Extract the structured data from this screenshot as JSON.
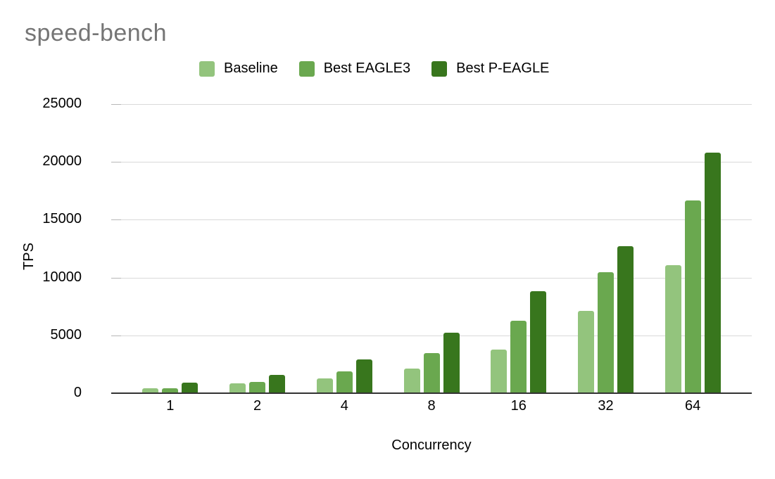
{
  "title": "speed-bench",
  "axes": {
    "xlabel": "Concurrency",
    "ylabel": "TPS"
  },
  "legend": {
    "items": [
      {
        "label": "Baseline",
        "color": "#93c47d"
      },
      {
        "label": "Best EAGLE3",
        "color": "#6aa84f"
      },
      {
        "label": "Best P-EAGLE",
        "color": "#38761d"
      }
    ]
  },
  "colors": {
    "title_text": "#757575",
    "gridline": "#d9d9d9",
    "tick_mark": "#b7b7b7",
    "axis_line": "#333333",
    "label_text": "#000000",
    "background": "#ffffff"
  },
  "chart_data": {
    "type": "bar",
    "title": "speed-bench",
    "xlabel": "Concurrency",
    "ylabel": "TPS",
    "categories": [
      "1",
      "2",
      "4",
      "8",
      "16",
      "32",
      "64"
    ],
    "series": [
      {
        "name": "Baseline",
        "color": "#93c47d",
        "values": [
          450,
          850,
          1250,
          2150,
          3800,
          7100,
          11100
        ]
      },
      {
        "name": "Best EAGLE3",
        "color": "#6aa84f",
        "values": [
          450,
          1000,
          1900,
          3500,
          6250,
          10450,
          16700
        ]
      },
      {
        "name": "Best P-EAGLE",
        "color": "#38761d",
        "values": [
          900,
          1600,
          2950,
          5250,
          8850,
          12700,
          20800
        ]
      }
    ],
    "ylim": [
      0,
      25000
    ],
    "yticks": [
      0,
      5000,
      10000,
      15000,
      20000,
      25000
    ],
    "grid": true,
    "legend_position": "top"
  }
}
